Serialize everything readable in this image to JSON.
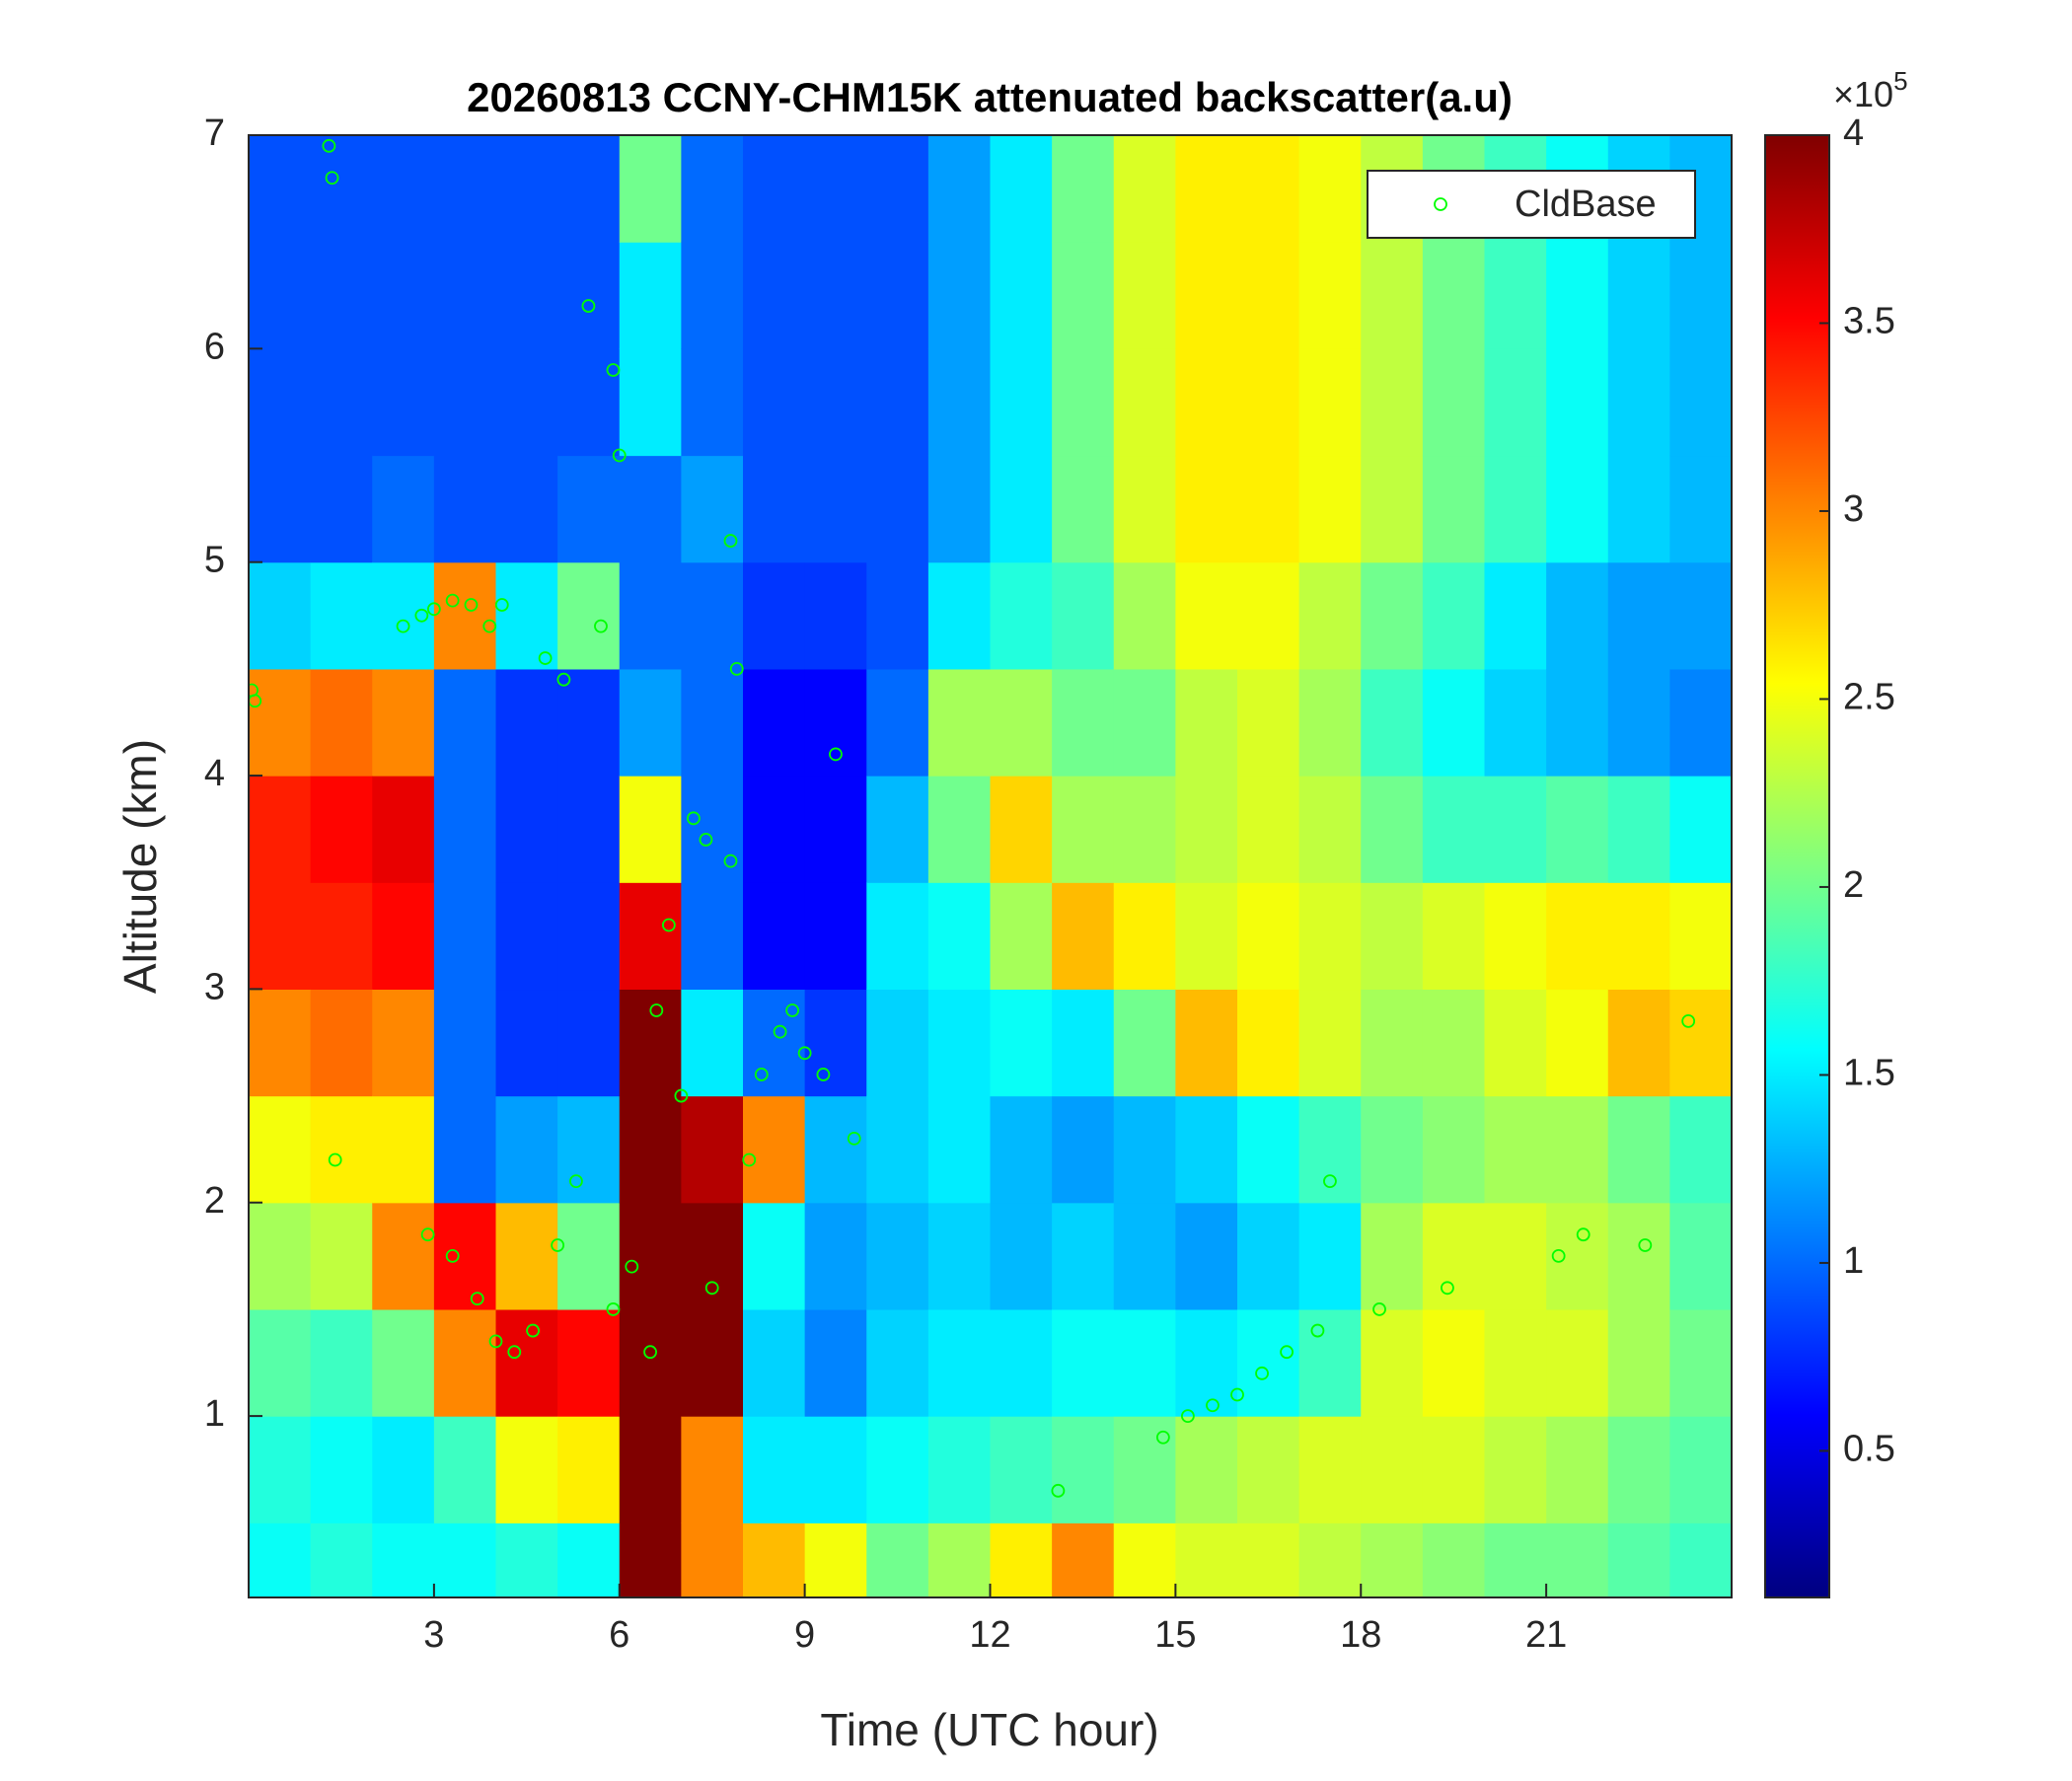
{
  "chart_data": {
    "type": "heatmap",
    "title": "20260813 CCNY-CHM15K attenuated backscatter(a.u)",
    "xlabel": "Time (UTC hour)",
    "ylabel": "Altitude (km)",
    "xlim": [
      0,
      24
    ],
    "ylim": [
      0.15,
      7
    ],
    "xticks": [
      3,
      6,
      9,
      12,
      15,
      18,
      21
    ],
    "yticks": [
      1,
      2,
      3,
      4,
      5,
      6,
      7
    ],
    "x_edges": [
      0,
      1,
      2,
      3,
      4,
      5,
      6,
      7,
      8,
      9,
      10,
      11,
      12,
      13,
      14,
      15,
      16,
      17,
      18,
      19,
      20,
      21,
      22,
      23,
      24
    ],
    "y_edges": [
      0.15,
      0.5,
      1,
      1.5,
      2,
      2.5,
      3,
      3.5,
      4,
      4.5,
      5,
      5.5,
      6,
      6.5,
      7
    ],
    "z": [
      [
        1.6,
        1.7,
        1.9,
        2.2,
        2.5,
        3.0,
        3.4,
        3.4,
        3.0,
        1.4,
        0.9,
        0.9,
        0.9,
        0.9
      ],
      [
        1.7,
        1.6,
        1.8,
        2.3,
        2.6,
        3.1,
        3.4,
        3.5,
        3.1,
        1.5,
        0.9,
        0.9,
        0.9,
        0.9
      ],
      [
        1.6,
        1.5,
        2.0,
        3.0,
        2.6,
        3.0,
        3.5,
        3.6,
        3.0,
        1.5,
        1.0,
        0.9,
        0.9,
        0.9
      ],
      [
        1.6,
        1.8,
        3.0,
        3.5,
        1.0,
        1.0,
        1.0,
        1.0,
        1.0,
        3.0,
        0.9,
        0.9,
        0.9,
        0.9
      ],
      [
        1.7,
        2.5,
        3.6,
        2.8,
        1.2,
        0.8,
        0.8,
        0.8,
        0.8,
        1.5,
        0.9,
        0.9,
        0.9,
        0.9
      ],
      [
        1.6,
        2.6,
        3.5,
        2.0,
        1.3,
        0.8,
        0.8,
        0.8,
        0.8,
        2.0,
        1.0,
        0.9,
        0.9,
        0.9
      ],
      [
        4.0,
        4.0,
        4.0,
        4.0,
        4.0,
        4.0,
        3.6,
        2.5,
        1.2,
        1.0,
        1.0,
        1.5,
        1.5,
        2.0
      ],
      [
        3.0,
        3.0,
        4.0,
        4.0,
        3.8,
        1.5,
        1.0,
        1.0,
        1.0,
        1.0,
        1.2,
        1.0,
        1.0,
        1.0
      ],
      [
        2.8,
        1.5,
        1.4,
        1.6,
        3.0,
        1.0,
        0.6,
        0.6,
        0.6,
        0.8,
        0.9,
        0.9,
        0.9,
        0.9
      ],
      [
        2.5,
        1.5,
        1.1,
        1.2,
        1.3,
        0.8,
        0.6,
        0.6,
        0.6,
        0.8,
        0.9,
        0.9,
        0.9,
        0.9
      ],
      [
        2.0,
        1.6,
        1.4,
        1.3,
        1.4,
        1.4,
        1.5,
        1.3,
        1.0,
        0.9,
        0.9,
        0.9,
        0.9,
        0.9
      ],
      [
        2.2,
        1.7,
        1.5,
        1.4,
        1.5,
        1.5,
        1.6,
        2.0,
        2.2,
        1.5,
        1.2,
        1.2,
        1.2,
        1.2
      ],
      [
        2.6,
        1.8,
        1.5,
        1.3,
        1.3,
        1.6,
        2.2,
        2.7,
        2.2,
        1.7,
        1.5,
        1.5,
        1.5,
        1.5
      ],
      [
        3.0,
        1.9,
        1.6,
        1.4,
        1.2,
        1.5,
        2.8,
        2.2,
        2.0,
        1.8,
        2.0,
        2.0,
        2.0,
        2.0
      ],
      [
        2.5,
        2.0,
        1.6,
        1.3,
        1.3,
        2.0,
        2.6,
        2.2,
        2.0,
        2.2,
        2.4,
        2.4,
        2.4,
        2.4
      ],
      [
        2.4,
        2.2,
        1.5,
        1.2,
        1.4,
        2.8,
        2.4,
        2.3,
        2.3,
        2.5,
        2.6,
        2.6,
        2.6,
        2.6
      ],
      [
        2.4,
        2.3,
        1.6,
        1.4,
        1.6,
        2.6,
        2.5,
        2.4,
        2.4,
        2.5,
        2.6,
        2.6,
        2.6,
        2.6
      ],
      [
        2.3,
        2.4,
        1.8,
        1.5,
        1.8,
        2.4,
        2.4,
        2.3,
        2.2,
        2.3,
        2.5,
        2.5,
        2.5,
        2.5
      ],
      [
        2.2,
        2.4,
        2.4,
        2.2,
        2.0,
        2.2,
        2.3,
        2.0,
        1.8,
        2.0,
        2.3,
        2.3,
        2.3,
        2.3
      ],
      [
        2.1,
        2.4,
        2.5,
        2.4,
        2.1,
        2.2,
        2.4,
        1.8,
        1.6,
        1.8,
        2.0,
        2.0,
        2.0,
        2.0
      ],
      [
        2.0,
        2.3,
        2.4,
        2.4,
        2.2,
        2.4,
        2.5,
        1.8,
        1.4,
        1.5,
        1.8,
        1.8,
        1.8,
        1.8
      ],
      [
        2.0,
        2.2,
        2.4,
        2.3,
        2.2,
        2.5,
        2.6,
        1.9,
        1.3,
        1.3,
        1.6,
        1.6,
        1.6,
        1.6
      ],
      [
        1.9,
        2.0,
        2.2,
        2.2,
        2.0,
        2.8,
        2.6,
        1.8,
        1.2,
        1.2,
        1.4,
        1.4,
        1.4,
        1.4
      ],
      [
        1.8,
        1.9,
        2.0,
        1.9,
        1.8,
        2.7,
        2.5,
        1.6,
        1.1,
        1.2,
        1.3,
        1.3,
        1.3,
        1.3
      ]
    ],
    "colormap": "jet",
    "clim": [
      0.11,
      4
    ],
    "cticks": [
      0.5,
      1,
      1.5,
      2,
      2.5,
      3,
      3.5,
      4
    ],
    "colorbar_multiplier": {
      "base": "×10",
      "exponent": "5"
    },
    "legend": "upper right",
    "overlay": {
      "type": "scatter",
      "name": "CldBase",
      "color": "#00ff00",
      "x": [
        0.05,
        0.1,
        1.3,
        1.35,
        1.4,
        2.5,
        2.8,
        3.0,
        3.3,
        3.6,
        3.9,
        2.9,
        3.3,
        3.7,
        4.0,
        4.3,
        4.6,
        4.1,
        4.8,
        5.1,
        5.0,
        5.3,
        5.5,
        5.7,
        5.9,
        6.0,
        5.9,
        6.2,
        6.5,
        6.6,
        6.8,
        7.0,
        7.2,
        7.4,
        7.5,
        7.8,
        7.8,
        7.9,
        8.1,
        8.3,
        8.6,
        8.8,
        9.0,
        9.3,
        9.5,
        9.8,
        13.1,
        14.8,
        15.2,
        15.6,
        16.0,
        16.4,
        16.8,
        17.3,
        17.5,
        18.3,
        19.4,
        21.2,
        21.6,
        22.6,
        23.3
      ],
      "y": [
        4.4,
        4.35,
        6.95,
        6.8,
        2.2,
        4.7,
        4.75,
        4.78,
        4.82,
        4.8,
        4.7,
        1.85,
        1.75,
        1.55,
        1.35,
        1.3,
        1.4,
        4.8,
        4.55,
        4.45,
        1.8,
        2.1,
        6.2,
        4.7,
        5.9,
        5.5,
        1.5,
        1.7,
        1.3,
        2.9,
        3.3,
        2.5,
        3.8,
        3.7,
        1.6,
        3.6,
        5.1,
        4.5,
        2.2,
        2.6,
        2.8,
        2.9,
        2.7,
        2.6,
        4.1,
        2.3,
        0.65,
        0.9,
        1.0,
        1.05,
        1.1,
        1.2,
        1.3,
        1.4,
        2.1,
        1.5,
        1.6,
        1.75,
        1.85,
        1.8,
        2.85
      ]
    }
  }
}
